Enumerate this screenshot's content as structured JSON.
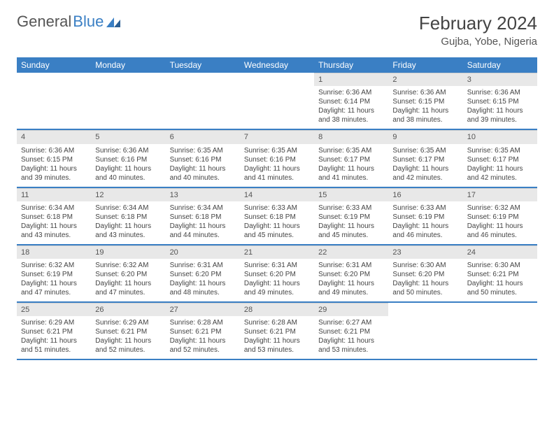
{
  "logo": {
    "text1": "General",
    "text2": "Blue"
  },
  "title": "February 2024",
  "location": "Gujba, Yobe, Nigeria",
  "colors": {
    "primary": "#3a7fc4",
    "header_bg": "#e8e8e8",
    "text": "#444",
    "page_bg": "#ffffff"
  },
  "weekdays": [
    "Sunday",
    "Monday",
    "Tuesday",
    "Wednesday",
    "Thursday",
    "Friday",
    "Saturday"
  ],
  "weeks": [
    [
      {
        "n": "",
        "sr": "",
        "ss": "",
        "dl": ""
      },
      {
        "n": "",
        "sr": "",
        "ss": "",
        "dl": ""
      },
      {
        "n": "",
        "sr": "",
        "ss": "",
        "dl": ""
      },
      {
        "n": "",
        "sr": "",
        "ss": "",
        "dl": ""
      },
      {
        "n": "1",
        "sr": "Sunrise: 6:36 AM",
        "ss": "Sunset: 6:14 PM",
        "dl": "Daylight: 11 hours and 38 minutes."
      },
      {
        "n": "2",
        "sr": "Sunrise: 6:36 AM",
        "ss": "Sunset: 6:15 PM",
        "dl": "Daylight: 11 hours and 38 minutes."
      },
      {
        "n": "3",
        "sr": "Sunrise: 6:36 AM",
        "ss": "Sunset: 6:15 PM",
        "dl": "Daylight: 11 hours and 39 minutes."
      }
    ],
    [
      {
        "n": "4",
        "sr": "Sunrise: 6:36 AM",
        "ss": "Sunset: 6:15 PM",
        "dl": "Daylight: 11 hours and 39 minutes."
      },
      {
        "n": "5",
        "sr": "Sunrise: 6:36 AM",
        "ss": "Sunset: 6:16 PM",
        "dl": "Daylight: 11 hours and 40 minutes."
      },
      {
        "n": "6",
        "sr": "Sunrise: 6:35 AM",
        "ss": "Sunset: 6:16 PM",
        "dl": "Daylight: 11 hours and 40 minutes."
      },
      {
        "n": "7",
        "sr": "Sunrise: 6:35 AM",
        "ss": "Sunset: 6:16 PM",
        "dl": "Daylight: 11 hours and 41 minutes."
      },
      {
        "n": "8",
        "sr": "Sunrise: 6:35 AM",
        "ss": "Sunset: 6:17 PM",
        "dl": "Daylight: 11 hours and 41 minutes."
      },
      {
        "n": "9",
        "sr": "Sunrise: 6:35 AM",
        "ss": "Sunset: 6:17 PM",
        "dl": "Daylight: 11 hours and 42 minutes."
      },
      {
        "n": "10",
        "sr": "Sunrise: 6:35 AM",
        "ss": "Sunset: 6:17 PM",
        "dl": "Daylight: 11 hours and 42 minutes."
      }
    ],
    [
      {
        "n": "11",
        "sr": "Sunrise: 6:34 AM",
        "ss": "Sunset: 6:18 PM",
        "dl": "Daylight: 11 hours and 43 minutes."
      },
      {
        "n": "12",
        "sr": "Sunrise: 6:34 AM",
        "ss": "Sunset: 6:18 PM",
        "dl": "Daylight: 11 hours and 43 minutes."
      },
      {
        "n": "13",
        "sr": "Sunrise: 6:34 AM",
        "ss": "Sunset: 6:18 PM",
        "dl": "Daylight: 11 hours and 44 minutes."
      },
      {
        "n": "14",
        "sr": "Sunrise: 6:33 AM",
        "ss": "Sunset: 6:18 PM",
        "dl": "Daylight: 11 hours and 45 minutes."
      },
      {
        "n": "15",
        "sr": "Sunrise: 6:33 AM",
        "ss": "Sunset: 6:19 PM",
        "dl": "Daylight: 11 hours and 45 minutes."
      },
      {
        "n": "16",
        "sr": "Sunrise: 6:33 AM",
        "ss": "Sunset: 6:19 PM",
        "dl": "Daylight: 11 hours and 46 minutes."
      },
      {
        "n": "17",
        "sr": "Sunrise: 6:32 AM",
        "ss": "Sunset: 6:19 PM",
        "dl": "Daylight: 11 hours and 46 minutes."
      }
    ],
    [
      {
        "n": "18",
        "sr": "Sunrise: 6:32 AM",
        "ss": "Sunset: 6:19 PM",
        "dl": "Daylight: 11 hours and 47 minutes."
      },
      {
        "n": "19",
        "sr": "Sunrise: 6:32 AM",
        "ss": "Sunset: 6:20 PM",
        "dl": "Daylight: 11 hours and 47 minutes."
      },
      {
        "n": "20",
        "sr": "Sunrise: 6:31 AM",
        "ss": "Sunset: 6:20 PM",
        "dl": "Daylight: 11 hours and 48 minutes."
      },
      {
        "n": "21",
        "sr": "Sunrise: 6:31 AM",
        "ss": "Sunset: 6:20 PM",
        "dl": "Daylight: 11 hours and 49 minutes."
      },
      {
        "n": "22",
        "sr": "Sunrise: 6:31 AM",
        "ss": "Sunset: 6:20 PM",
        "dl": "Daylight: 11 hours and 49 minutes."
      },
      {
        "n": "23",
        "sr": "Sunrise: 6:30 AM",
        "ss": "Sunset: 6:20 PM",
        "dl": "Daylight: 11 hours and 50 minutes."
      },
      {
        "n": "24",
        "sr": "Sunrise: 6:30 AM",
        "ss": "Sunset: 6:21 PM",
        "dl": "Daylight: 11 hours and 50 minutes."
      }
    ],
    [
      {
        "n": "25",
        "sr": "Sunrise: 6:29 AM",
        "ss": "Sunset: 6:21 PM",
        "dl": "Daylight: 11 hours and 51 minutes."
      },
      {
        "n": "26",
        "sr": "Sunrise: 6:29 AM",
        "ss": "Sunset: 6:21 PM",
        "dl": "Daylight: 11 hours and 52 minutes."
      },
      {
        "n": "27",
        "sr": "Sunrise: 6:28 AM",
        "ss": "Sunset: 6:21 PM",
        "dl": "Daylight: 11 hours and 52 minutes."
      },
      {
        "n": "28",
        "sr": "Sunrise: 6:28 AM",
        "ss": "Sunset: 6:21 PM",
        "dl": "Daylight: 11 hours and 53 minutes."
      },
      {
        "n": "29",
        "sr": "Sunrise: 6:27 AM",
        "ss": "Sunset: 6:21 PM",
        "dl": "Daylight: 11 hours and 53 minutes."
      },
      {
        "n": "",
        "sr": "",
        "ss": "",
        "dl": ""
      },
      {
        "n": "",
        "sr": "",
        "ss": "",
        "dl": ""
      }
    ]
  ]
}
